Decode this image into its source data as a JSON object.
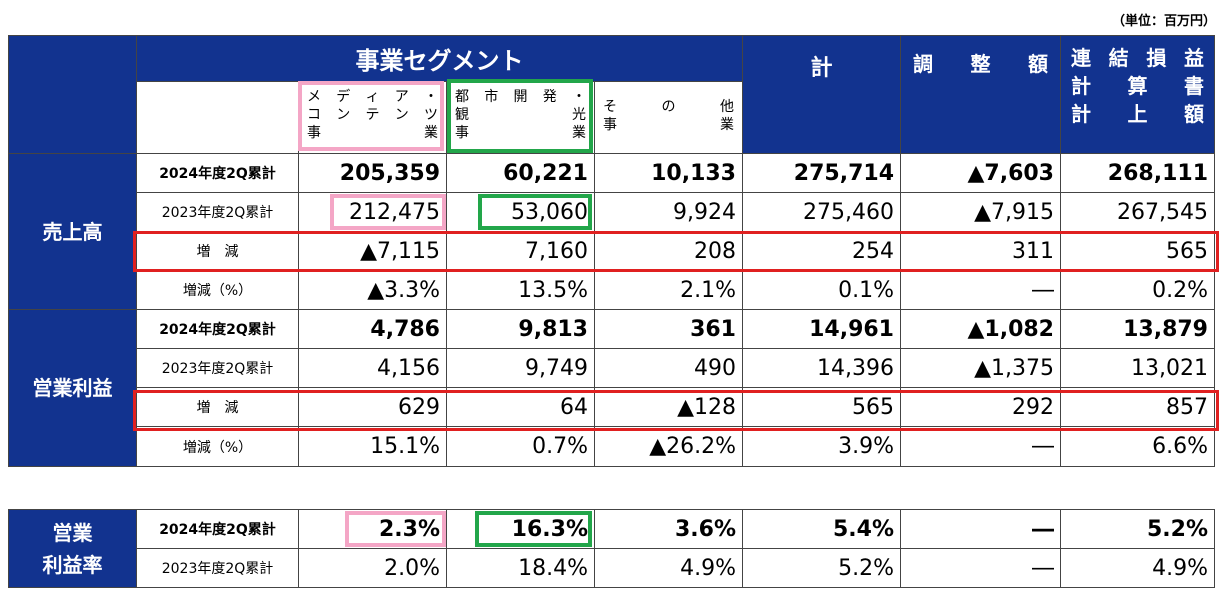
{
  "unit": "（単位：百万円）",
  "header": {
    "segment": "事業セグメント",
    "media_l1": [
      "メ",
      "デ",
      "ィ",
      "ア",
      "・"
    ],
    "media_l2": [
      "コ",
      "ン",
      "テ",
      "ン",
      "ツ"
    ],
    "media_l3": [
      "事",
      "業"
    ],
    "urban_l1": [
      "都",
      "市",
      "開",
      "発",
      "・"
    ],
    "urban_l2": [
      "観",
      "光"
    ],
    "urban_l3": [
      "事",
      "業"
    ],
    "other_l1": [
      "そ",
      "の",
      "他"
    ],
    "other_l2": [
      "事",
      "業"
    ],
    "total": "計",
    "adjust": [
      "調",
      "整",
      "額"
    ],
    "consol_l1": [
      "連",
      "結",
      "損",
      "益"
    ],
    "consol_l2": [
      "計",
      "算",
      "書"
    ],
    "consol_l3": [
      "計",
      "上",
      "額"
    ]
  },
  "sales": {
    "head": "売上高",
    "rows": [
      {
        "label": "2024年度2Q累計",
        "vals": [
          "205,359",
          "60,221",
          "10,133",
          "275,714",
          "▲7,603",
          "268,111"
        ]
      },
      {
        "label": "2023年度2Q累計",
        "vals": [
          "212,475",
          "53,060",
          "9,924",
          "275,460",
          "▲7,915",
          "267,545"
        ]
      },
      {
        "label": "増　減",
        "vals": [
          "▲7,115",
          "7,160",
          "208",
          "254",
          "311",
          "565"
        ]
      },
      {
        "label": "増減（%）",
        "vals": [
          "▲3.3%",
          "13.5%",
          "2.1%",
          "0.1%",
          "―",
          "0.2%"
        ]
      }
    ]
  },
  "op": {
    "head": "営業利益",
    "rows": [
      {
        "label": "2024年度2Q累計",
        "vals": [
          "4,786",
          "9,813",
          "361",
          "14,961",
          "▲1,082",
          "13,879"
        ]
      },
      {
        "label": "2023年度2Q累計",
        "vals": [
          "4,156",
          "9,749",
          "490",
          "14,396",
          "▲1,375",
          "13,021"
        ]
      },
      {
        "label": "増　減",
        "vals": [
          "629",
          "64",
          "▲128",
          "565",
          "292",
          "857"
        ]
      },
      {
        "label": "増減（%）",
        "vals": [
          "15.1%",
          "0.7%",
          "▲26.2%",
          "3.9%",
          "―",
          "6.6%"
        ]
      }
    ]
  },
  "margin": {
    "head_l1": "営業",
    "head_l2": "利益率",
    "rows": [
      {
        "label": "2024年度2Q累計",
        "vals": [
          "2.3%",
          "16.3%",
          "3.6%",
          "5.4%",
          "―",
          "5.2%"
        ]
      },
      {
        "label": "2023年度2Q累計",
        "vals": [
          "2.0%",
          "18.4%",
          "4.9%",
          "5.2%",
          "―",
          "4.9%"
        ]
      }
    ]
  }
}
